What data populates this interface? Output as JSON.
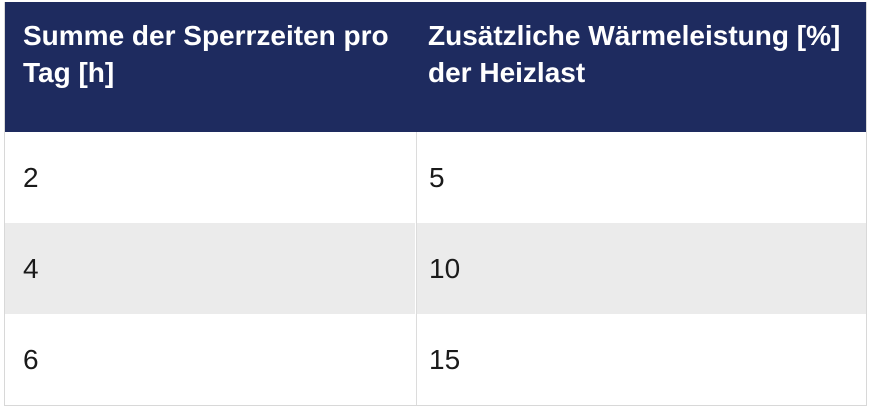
{
  "chart_data": {
    "type": "table",
    "title": "",
    "columns": [
      "Summe der Sperrzeiten pro Tag [h]",
      "Zusätzliche Wärmeleistung [%] der Heizlast"
    ],
    "rows": [
      [
        "2",
        "5"
      ],
      [
        "4",
        "10"
      ],
      [
        "6",
        "15"
      ]
    ],
    "x_values_sperrzeiten_h": [
      2,
      4,
      6
    ],
    "y_values_waermeleistung_pct": [
      5,
      10,
      15
    ]
  },
  "table": {
    "header": {
      "col1": "Summe der Sperrzeiten pro Tag [h]",
      "col2": "Zusätzliche Wärmeleistung [%] der Heizlast"
    },
    "rows": [
      {
        "col1": "2",
        "col2": "5"
      },
      {
        "col1": "4",
        "col2": "10"
      },
      {
        "col1": "6",
        "col2": "15"
      }
    ]
  },
  "colors": {
    "header_background": "#1e2b5f",
    "header_text": "#ffffff",
    "row_stripe": "#ebebeb",
    "row_plain": "#ffffff",
    "body_text": "#1a1a1a",
    "border": "#d8d8d8",
    "column_divider": "#dcdcdc"
  }
}
